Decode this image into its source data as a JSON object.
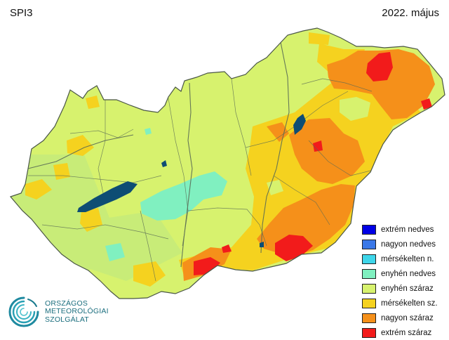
{
  "map": {
    "title": "SPI3",
    "date": "2022. május",
    "colors": {
      "extrem_nedves": "#0000e6",
      "nagyon_nedves": "#3a78e8",
      "mersekelten_nedves": "#3ed6ea",
      "enyhen_nedves": "#80f0c0",
      "enyhen_szaraz": "#d7f26e",
      "mersekelten_szaraz": "#f5d21f",
      "nagyon_szaraz": "#f5901a",
      "extrem_szaraz": "#f21b1b",
      "border": "#5a6b55",
      "water": "#0e4d74"
    }
  },
  "legend": {
    "items": [
      {
        "label": "extrém nedves",
        "color": "#0000e6"
      },
      {
        "label": "nagyon nedves",
        "color": "#3a78e8"
      },
      {
        "label": "mérsékelten n.",
        "color": "#3ed6ea"
      },
      {
        "label": "enyhén nedves",
        "color": "#80f0c0"
      },
      {
        "label": "enyhén száraz",
        "color": "#d7f26e"
      },
      {
        "label": "mérsékelten sz.",
        "color": "#f5d21f"
      },
      {
        "label": "nagyon száraz",
        "color": "#f5901a"
      },
      {
        "label": "extrém száraz",
        "color": "#f21b1b"
      }
    ]
  },
  "logo": {
    "line1": "ORSZÁGOS",
    "line2": "METEOROLÓGIAI",
    "line3": "SZOLGÁLAT"
  }
}
